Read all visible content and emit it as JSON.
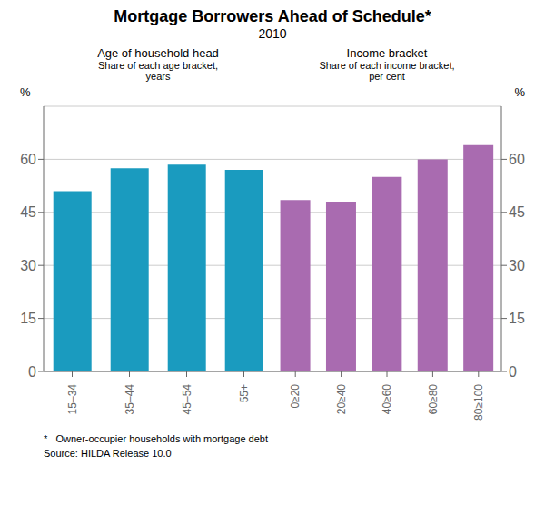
{
  "title": "Mortgage Borrowers Ahead of Schedule*",
  "subtitle": "2010",
  "annotations": [
    "*   Owner-occupier households with mortgage debt",
    "Source: HILDA Release 10.0"
  ],
  "chart_data": [
    {
      "type": "bar",
      "title": "Age of household head",
      "subtitle": "Share of each age bracket,\nyears",
      "categories": [
        "15–34",
        "35–44",
        "45–54",
        "55+"
      ],
      "values": [
        51.0,
        57.5,
        58.5,
        57.0
      ],
      "color": "#1a9bbf",
      "ylim": [
        0,
        75
      ],
      "yticks": [
        0,
        15,
        30,
        45,
        60
      ],
      "ylabel": "%",
      "grid": true
    },
    {
      "type": "bar",
      "title": "Income bracket",
      "subtitle": "Share of each income bracket,\nper cent",
      "categories": [
        "0≥20",
        "20≥40",
        "40≥60",
        "60≥80",
        "80≥100"
      ],
      "values": [
        48.5,
        48.0,
        55.0,
        60.0,
        64.0
      ],
      "color": "#a96bb0",
      "ylim": [
        0,
        75
      ],
      "yticks": [
        0,
        15,
        30,
        45,
        60
      ],
      "ylabel": "%",
      "grid": true
    }
  ]
}
